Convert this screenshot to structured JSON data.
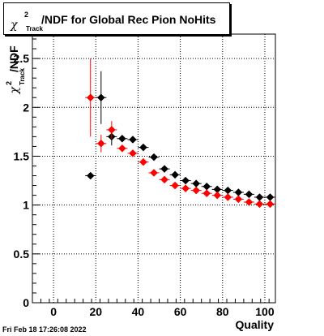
{
  "chart_data": {
    "type": "scatter",
    "title": "/NDF for Global Rec Pion NoHits",
    "title_symbol": "χ",
    "title_superscript": "2",
    "title_subscript": "Track",
    "xlabel": "Quality",
    "ylabel": "/NDF",
    "ylabel_symbol": "χ",
    "ylabel_superscript": "2",
    "ylabel_subscript": "Track",
    "xlim": [
      -10,
      105
    ],
    "ylim": [
      0,
      2.75
    ],
    "xticks": [
      0,
      20,
      40,
      60,
      80,
      100
    ],
    "yticks": [
      0,
      0.5,
      1,
      1.5,
      2,
      2.5
    ],
    "xtick_labels": [
      "0",
      "20",
      "40",
      "60",
      "80",
      "100"
    ],
    "ytick_labels": [
      "0",
      "0.5",
      "1",
      "1.5",
      "2",
      "2.5"
    ],
    "grid": true,
    "series": [
      {
        "color": "#000000",
        "x": [
          17.5,
          22.5,
          27.5,
          32.5,
          37.5,
          42.5,
          47.5,
          52.5,
          57.5,
          62.5,
          67.5,
          72.5,
          77.5,
          82.5,
          87.5,
          92.5,
          97.5,
          102.5
        ],
        "y": [
          1.3,
          2.1,
          1.7,
          1.68,
          1.67,
          1.59,
          1.49,
          1.37,
          1.31,
          1.25,
          1.22,
          1.19,
          1.16,
          1.15,
          1.13,
          1.11,
          1.08,
          1.08
        ],
        "err": [
          0,
          0.27,
          0.09,
          0.03,
          0.02,
          0.02,
          0.015,
          0.012,
          0.01,
          0.01,
          0.008,
          0.008,
          0.008,
          0.008,
          0.008,
          0.008,
          0.008,
          0.008
        ]
      },
      {
        "color": "#ff0000",
        "x": [
          17.5,
          22.5,
          27.5,
          32.5,
          37.5,
          42.5,
          47.5,
          52.5,
          57.5,
          62.5,
          67.5,
          72.5,
          77.5,
          82.5,
          87.5,
          92.5,
          97.5,
          102.5
        ],
        "y": [
          2.1,
          1.63,
          1.77,
          1.58,
          1.53,
          1.44,
          1.33,
          1.26,
          1.2,
          1.17,
          1.15,
          1.12,
          1.1,
          1.08,
          1.06,
          1.03,
          1.01,
          1.01
        ],
        "err": [
          0.4,
          0.09,
          0.09,
          0.03,
          0.02,
          0.02,
          0.015,
          0.012,
          0.01,
          0.01,
          0.008,
          0.008,
          0.008,
          0.008,
          0.008,
          0.008,
          0.008,
          0.008
        ]
      }
    ]
  },
  "footer": {
    "timestamp": "Fri Feb 18 17:26:08 2022"
  }
}
